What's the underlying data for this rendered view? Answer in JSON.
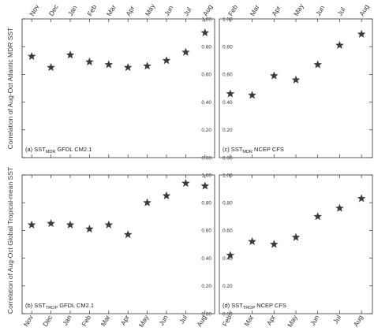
{
  "y_axis_label_top": "Correlation of Aug-Oct Atlantic MDR SST",
  "y_axis_label_bottom": "Correlation of Aug-Oct Global Tropical-mean SST",
  "chart_data": [
    {
      "type": "scatter",
      "panel_label": "(a) SST",
      "panel_subscript": "MDR",
      "panel_suffix": " GFDL CM2.1",
      "categories": [
        "Nov",
        "Dec",
        "Jan",
        "Feb",
        "Mar",
        "Apr",
        "May",
        "Jun",
        "Jul",
        "Aug"
      ],
      "values": [
        0.73,
        0.65,
        0.74,
        0.69,
        0.67,
        0.65,
        0.66,
        0.7,
        0.76,
        0.9
      ],
      "ylim": [
        0,
        1
      ],
      "yticks": [
        "0.00",
        "0.20",
        "0.40",
        "0.60",
        "0.80",
        "1.00"
      ],
      "marker": "star"
    },
    {
      "type": "scatter",
      "panel_label": "(c) SST",
      "panel_subscript": "MDR",
      "panel_suffix": " NCEP CFS",
      "categories": [
        "Feb",
        "Mar",
        "Apr",
        "May",
        "Jun",
        "Jul",
        "Aug"
      ],
      "values": [
        0.46,
        0.45,
        0.59,
        0.56,
        0.67,
        0.81,
        0.89
      ],
      "ylim": [
        0,
        1
      ],
      "yticks": [
        "0.00",
        "0.20",
        "0.40",
        "0.60",
        "0.80",
        "1.00"
      ],
      "marker": "star"
    },
    {
      "type": "scatter",
      "panel_label": "(b) SST",
      "panel_subscript": "TROP",
      "panel_suffix": " GFDL CM2.1",
      "categories": [
        "Nov",
        "Dec",
        "Jan",
        "Feb",
        "Mar",
        "Apr",
        "May",
        "Jun",
        "Jul",
        "Aug"
      ],
      "values": [
        0.64,
        0.65,
        0.64,
        0.61,
        0.64,
        0.57,
        0.8,
        0.85,
        0.94,
        0.92
      ],
      "ylim": [
        0,
        1
      ],
      "yticks": [
        "0.00",
        "0.20",
        "0.40",
        "0.60",
        "0.80",
        "1.00"
      ],
      "marker": "star"
    },
    {
      "type": "scatter",
      "panel_label": "(d) SST",
      "panel_subscript": "TROP",
      "panel_suffix": " NCEP CFS",
      "categories": [
        "Feb",
        "Mar",
        "Apr",
        "May",
        "Jun",
        "Jul",
        "Aug"
      ],
      "values": [
        0.42,
        0.52,
        0.5,
        0.55,
        0.7,
        0.76,
        0.83
      ],
      "ylim": [
        0,
        1
      ],
      "yticks": [
        "0.00",
        "0.20",
        "0.40",
        "0.60",
        "0.80",
        "1.00"
      ],
      "marker": "star"
    }
  ]
}
